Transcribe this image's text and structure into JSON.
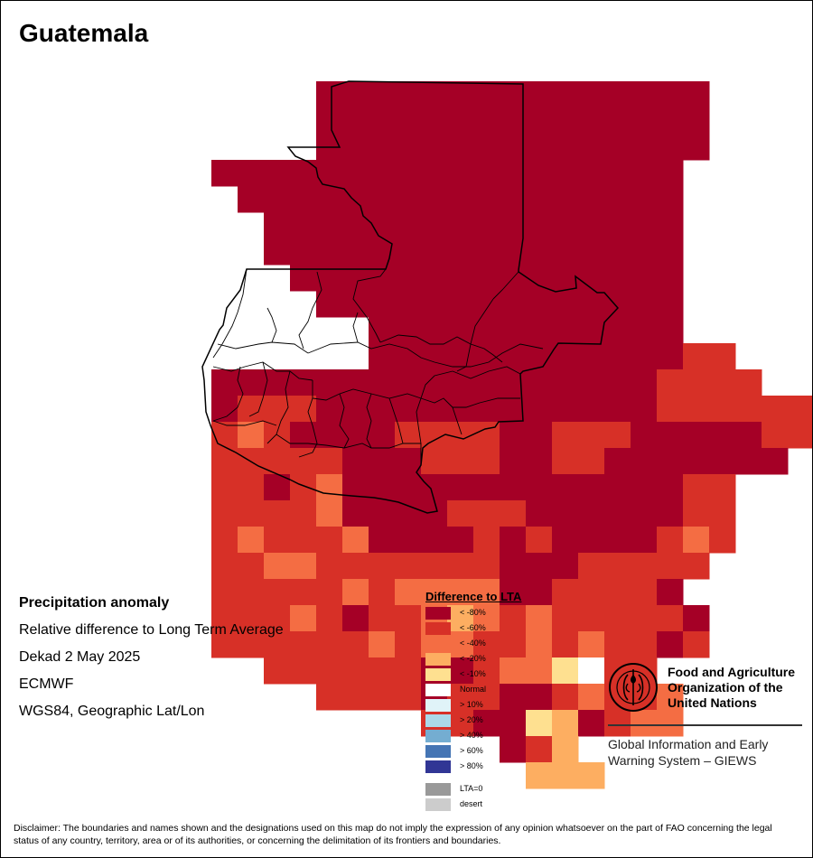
{
  "title": "Guatemala",
  "info": {
    "heading": "Precipitation anomaly",
    "line1": "Relative difference to Long Term Average",
    "line2": "Dekad 2 May 2025",
    "line3": "ECMWF",
    "line4": "WGS84, Geographic Lat/Lon"
  },
  "legend": {
    "title": "Difference to LTA",
    "classes": [
      {
        "label": "< -80%",
        "color": "#a50026"
      },
      {
        "label": "< -60%",
        "color": "#d73027"
      },
      {
        "label": "< -40%",
        "color": "#f46d43"
      },
      {
        "label": "< -20%",
        "color": "#fdae61"
      },
      {
        "label": "< -10%",
        "color": "#fee090"
      },
      {
        "label": "Normal",
        "color": "#ffffff"
      },
      {
        "label": "> 10%",
        "color": "#e0f3f8"
      },
      {
        "label": "> 20%",
        "color": "#abd9e9"
      },
      {
        "label": "> 40%",
        "color": "#74add1"
      },
      {
        "label": "> 60%",
        "color": "#4575b4"
      },
      {
        "label": "> 80%",
        "color": "#313695"
      }
    ],
    "special": [
      {
        "label": "LTA=0",
        "color": "#999999"
      },
      {
        "label": "desert",
        "color": "#cccccc"
      }
    ]
  },
  "logo": {
    "icon": "fao-emblem-icon",
    "org_line1": "Food and Agriculture",
    "org_line2": "Organization of the",
    "org_line3": "United Nations",
    "giews_line1": "Global Information and Early",
    "giews_line2": "Warning System – GIEWS"
  },
  "disclaimer": "Disclaimer: The boundaries and names shown and the designations used on this map do not imply the expression of any opinion whatsoever on the part of FAO concerning the legal status of any country, territory, area or of its authorities, or concerning the delimitation of its frontiers and boundaries.",
  "grid": {
    "rows": [
      "....444444444444444.......",
      "....444444444444444.......",
      "....444444444444444.......",
      "444444444444444444........",
      ".44444444444444444........",
      "..4444444444444444........",
      "..4444444444444444........",
      "...444444444444444........",
      "....44444444444444........",
      "......444444444444........",
      "......44444444444433......",
      "444444444444444443333.....",
      "433344444444444443333333..",
      "323444433334433344444333..",
      "3333344433344334444444....",
      "33432444444444444433......",
      "33332444433344444433......",
      "32333244443434444323......",
      "3322333333344433333.......",
      "333332322224433334........",
      "3332343321232333334.......",
      "3333332322332323343.......",
      "..333333443225633.........",
      "....33334334432332........",
      "........3344514322........",
      "...........431............",
      "............111..........."
    ]
  }
}
